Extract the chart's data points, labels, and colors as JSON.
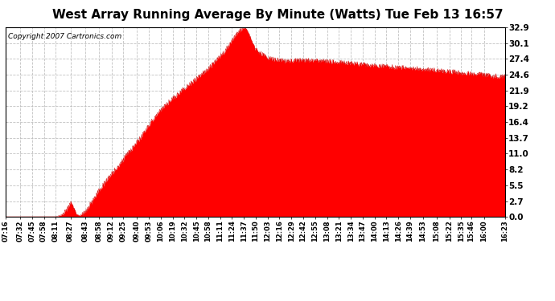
{
  "title": "West Array Running Average By Minute (Watts) Tue Feb 13 16:57",
  "copyright": "Copyright 2007 Cartronics.com",
  "fill_color": "#ff0000",
  "line_color": "#cc0000",
  "background_color": "#ffffff",
  "plot_bg_color": "#ffffff",
  "grid_color": "#bbbbbb",
  "yticks": [
    0.0,
    2.7,
    5.5,
    8.2,
    11.0,
    13.7,
    16.4,
    19.2,
    21.9,
    24.6,
    27.4,
    30.1,
    32.9
  ],
  "ymin": 0.0,
  "ymax": 32.9,
  "xtick_labels": [
    "07:16",
    "07:32",
    "07:45",
    "07:58",
    "08:11",
    "08:27",
    "08:43",
    "08:58",
    "09:12",
    "09:25",
    "09:40",
    "09:53",
    "10:06",
    "10:19",
    "10:32",
    "10:45",
    "10:58",
    "11:11",
    "11:24",
    "11:37",
    "11:50",
    "12:03",
    "12:16",
    "12:29",
    "12:42",
    "12:55",
    "13:08",
    "13:21",
    "13:34",
    "13:47",
    "14:00",
    "14:13",
    "14:26",
    "14:39",
    "14:53",
    "15:08",
    "15:22",
    "15:35",
    "15:46",
    "16:00",
    "16:23"
  ],
  "title_fontsize": 11,
  "copyright_fontsize": 6.5,
  "tick_fontsize": 6,
  "ytick_fontsize": 7.5,
  "curve_points": {
    "times_min": [
      436,
      491,
      497,
      503,
      507,
      510,
      513,
      517,
      523,
      530,
      540,
      555,
      570,
      585,
      600,
      615,
      630,
      645,
      660,
      675,
      690,
      697,
      703,
      710,
      723,
      743,
      763,
      783,
      803,
      823,
      843,
      863,
      883,
      903,
      923,
      943,
      963,
      983
    ],
    "values": [
      0.0,
      0.0,
      0.3,
      1.2,
      2.5,
      1.8,
      0.5,
      0.2,
      0.8,
      2.5,
      5.0,
      8.0,
      11.0,
      14.0,
      17.5,
      20.0,
      22.0,
      24.0,
      26.0,
      28.5,
      32.0,
      32.9,
      31.5,
      29.0,
      27.5,
      27.0,
      27.2,
      27.0,
      26.8,
      26.5,
      26.2,
      26.0,
      25.8,
      25.5,
      25.2,
      24.9,
      24.6,
      24.3
    ]
  }
}
